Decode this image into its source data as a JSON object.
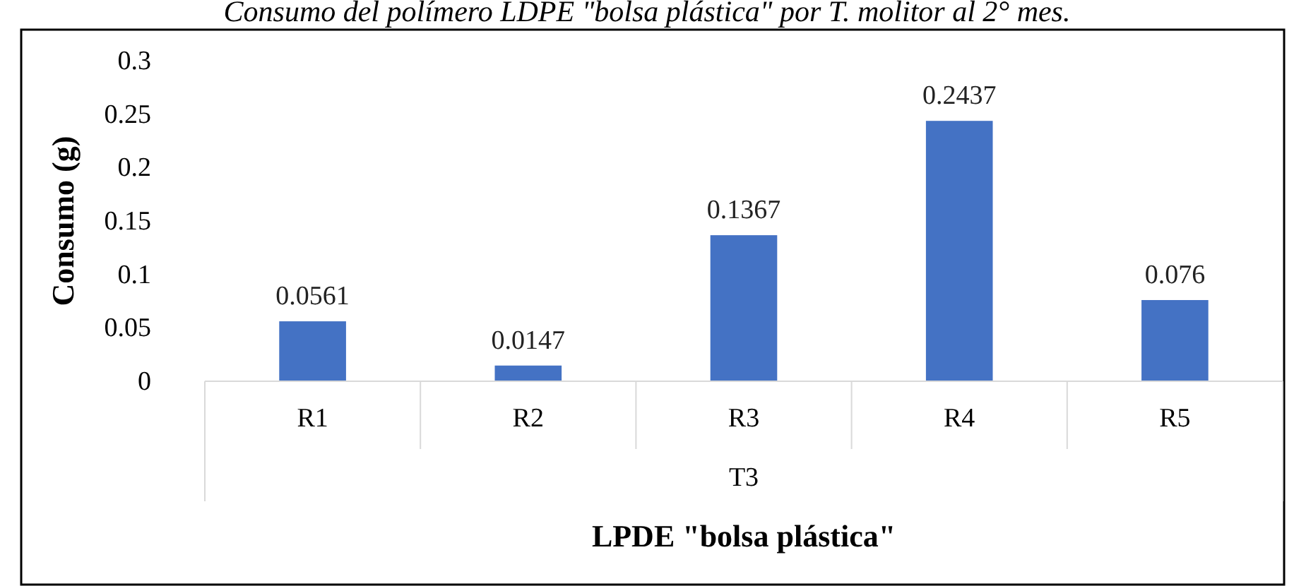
{
  "chart_data": {
    "type": "bar",
    "title": "Consumo del polímero LDPE \"bolsa plástica\" por T. molitor al 2° mes.",
    "xlabel": "LPDE \"bolsa plástica\"",
    "ylabel": "Consumo (g)",
    "annotations": [
      "T3"
    ],
    "categories": [
      "R1",
      "R2",
      "R3",
      "R4",
      "R5"
    ],
    "values": [
      0.0561,
      0.0147,
      0.1367,
      0.2437,
      0.076
    ],
    "color": "#4472c4",
    "ylim": [
      0,
      0.3
    ],
    "yticks": [
      0,
      0.05,
      0.1,
      0.15,
      0.2,
      0.25,
      0.3
    ],
    "grid": false,
    "data_labels": true
  }
}
